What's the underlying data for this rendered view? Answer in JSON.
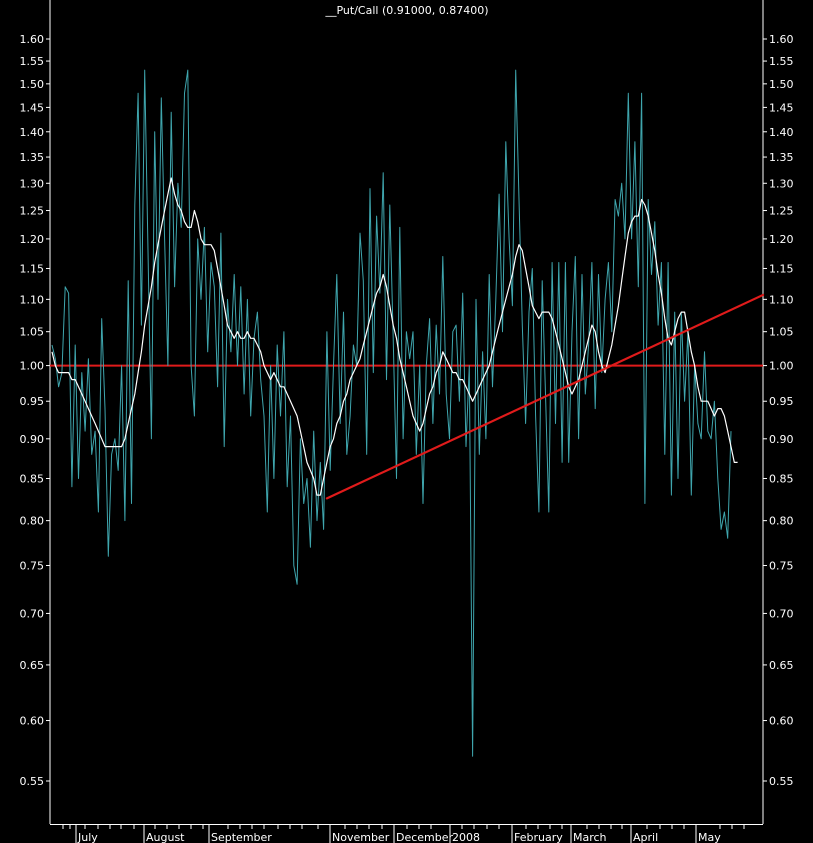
{
  "chart_data": {
    "type": "line",
    "title": "__Put/Call (0.91000, 0.87400)",
    "xlabel": "",
    "ylabel": "",
    "ylim": [
      0.51,
      1.66
    ],
    "y_scale": "log",
    "y_ticks": [
      "1.60",
      "1.55",
      "1.50",
      "1.45",
      "1.40",
      "1.35",
      "1.30",
      "1.25",
      "1.20",
      "1.15",
      "1.10",
      "1.05",
      "1.00",
      "0.95",
      "0.90",
      "0.85",
      "0.80",
      "0.75",
      "0.70",
      "0.65",
      "0.60",
      "0.55"
    ],
    "x_labels": [
      "July",
      "August",
      "September",
      "November",
      "December",
      "2008",
      "February",
      "March",
      "April",
      "May"
    ],
    "grid": false,
    "legend": "none",
    "colors": {
      "background": "#000000",
      "daily": "#3fa6ae",
      "average": "#ffffff",
      "reference": "#e01b1b",
      "axis": "#ffffff"
    },
    "series": [
      {
        "kind": "daily",
        "values": [
          1.03,
          1.01,
          0.97,
          0.99,
          1.12,
          1.11,
          0.84,
          1.03,
          0.85,
          0.99,
          0.91,
          1.01,
          0.88,
          0.91,
          0.81,
          1.07,
          0.94,
          0.76,
          0.88,
          0.9,
          0.86,
          1.0,
          0.8,
          1.13,
          0.82,
          1.26,
          1.48,
          1.06,
          1.53,
          1.17,
          0.9,
          1.4,
          1.1,
          1.47,
          1.2,
          1.0,
          1.44,
          1.12,
          1.3,
          1.22,
          1.48,
          1.53,
          1.0,
          0.93,
          1.2,
          1.1,
          1.22,
          1.02,
          1.16,
          1.12,
          0.97,
          1.21,
          0.89,
          1.1,
          1.02,
          1.14,
          1.0,
          1.12,
          0.96,
          1.1,
          0.93,
          1.04,
          1.08,
          0.98,
          0.93,
          0.81,
          1.0,
          0.85,
          1.03,
          0.93,
          1.05,
          0.84,
          0.93,
          0.75,
          0.73,
          0.9,
          0.82,
          0.85,
          0.77,
          0.91,
          0.8,
          0.87,
          0.79,
          1.05,
          0.86,
          1.0,
          1.14,
          0.92,
          1.08,
          0.88,
          0.93,
          1.03,
          1.0,
          1.21,
          1.13,
          0.88,
          1.29,
          0.99,
          1.24,
          1.11,
          1.32,
          0.98,
          1.26,
          1.04,
          0.85,
          1.22,
          0.9,
          1.05,
          1.01,
          1.05,
          0.88,
          1.0,
          0.82,
          1.0,
          1.07,
          0.92,
          1.06,
          0.96,
          1.17,
          0.96,
          0.9,
          1.05,
          1.06,
          0.95,
          1.11,
          0.89,
          1.0,
          0.57,
          1.1,
          0.88,
          1.02,
          0.9,
          1.14,
          0.97,
          1.1,
          1.28,
          1.05,
          1.38,
          1.2,
          1.09,
          1.53,
          1.27,
          1.06,
          0.92,
          1.08,
          1.15,
          0.93,
          0.81,
          1.13,
          0.96,
          0.81,
          1.16,
          0.92,
          1.16,
          0.87,
          1.16,
          0.87,
          1.05,
          1.17,
          0.9,
          1.14,
          0.96,
          1.03,
          1.16,
          0.94,
          1.14,
          0.99,
          1.1,
          1.16,
          1.05,
          1.27,
          1.24,
          1.3,
          1.2,
          1.48,
          1.2,
          1.38,
          1.12,
          1.48,
          0.82,
          1.27,
          1.14,
          1.23,
          1.06,
          1.16,
          0.88,
          1.16,
          0.83,
          1.08,
          0.85,
          1.08,
          0.95,
          1.05,
          0.83,
          1.0,
          0.92,
          0.9,
          1.02,
          0.91,
          0.9,
          0.95,
          0.85,
          0.79,
          0.81,
          0.78,
          0.91
        ]
      },
      {
        "kind": "average",
        "values": [
          1.02,
          1.0,
          0.99,
          0.99,
          0.99,
          0.99,
          0.98,
          0.98,
          0.97,
          0.96,
          0.95,
          0.94,
          0.93,
          0.92,
          0.91,
          0.9,
          0.89,
          0.89,
          0.89,
          0.89,
          0.89,
          0.89,
          0.9,
          0.92,
          0.94,
          0.96,
          0.99,
          1.02,
          1.06,
          1.09,
          1.12,
          1.16,
          1.19,
          1.22,
          1.25,
          1.28,
          1.31,
          1.28,
          1.26,
          1.25,
          1.23,
          1.22,
          1.22,
          1.25,
          1.23,
          1.2,
          1.19,
          1.19,
          1.19,
          1.18,
          1.15,
          1.12,
          1.09,
          1.06,
          1.05,
          1.04,
          1.05,
          1.04,
          1.04,
          1.05,
          1.04,
          1.04,
          1.03,
          1.02,
          1.0,
          0.99,
          0.98,
          0.99,
          0.98,
          0.97,
          0.97,
          0.96,
          0.95,
          0.94,
          0.93,
          0.91,
          0.89,
          0.87,
          0.86,
          0.85,
          0.83,
          0.83,
          0.85,
          0.87,
          0.89,
          0.9,
          0.92,
          0.93,
          0.95,
          0.96,
          0.98,
          0.99,
          1.0,
          1.01,
          1.03,
          1.05,
          1.07,
          1.09,
          1.11,
          1.12,
          1.14,
          1.12,
          1.09,
          1.06,
          1.04,
          1.01,
          0.99,
          0.97,
          0.95,
          0.93,
          0.92,
          0.91,
          0.92,
          0.94,
          0.96,
          0.97,
          0.99,
          1.0,
          1.02,
          1.01,
          1.0,
          0.99,
          0.99,
          0.98,
          0.98,
          0.97,
          0.96,
          0.95,
          0.96,
          0.97,
          0.98,
          0.99,
          1.0,
          1.02,
          1.04,
          1.06,
          1.08,
          1.1,
          1.12,
          1.14,
          1.17,
          1.19,
          1.18,
          1.15,
          1.12,
          1.09,
          1.08,
          1.07,
          1.08,
          1.08,
          1.08,
          1.07,
          1.05,
          1.03,
          1.01,
          0.99,
          0.97,
          0.96,
          0.97,
          0.98,
          1.0,
          1.02,
          1.04,
          1.06,
          1.05,
          1.02,
          1.0,
          0.99,
          1.01,
          1.03,
          1.06,
          1.09,
          1.13,
          1.17,
          1.21,
          1.23,
          1.24,
          1.24,
          1.27,
          1.26,
          1.24,
          1.21,
          1.18,
          1.14,
          1.11,
          1.07,
          1.04,
          1.03,
          1.05,
          1.07,
          1.08,
          1.08,
          1.05,
          1.02,
          1.0,
          0.97,
          0.95,
          0.95,
          0.95,
          0.94,
          0.93,
          0.94,
          0.94,
          0.93,
          0.91,
          0.89,
          0.87,
          0.87
        ]
      }
    ],
    "reference_lines": [
      {
        "kind": "horizontal",
        "value": 1.0
      },
      {
        "kind": "trend",
        "start_index": 83,
        "start_value": 0.826,
        "end_value": 1.107
      }
    ]
  }
}
